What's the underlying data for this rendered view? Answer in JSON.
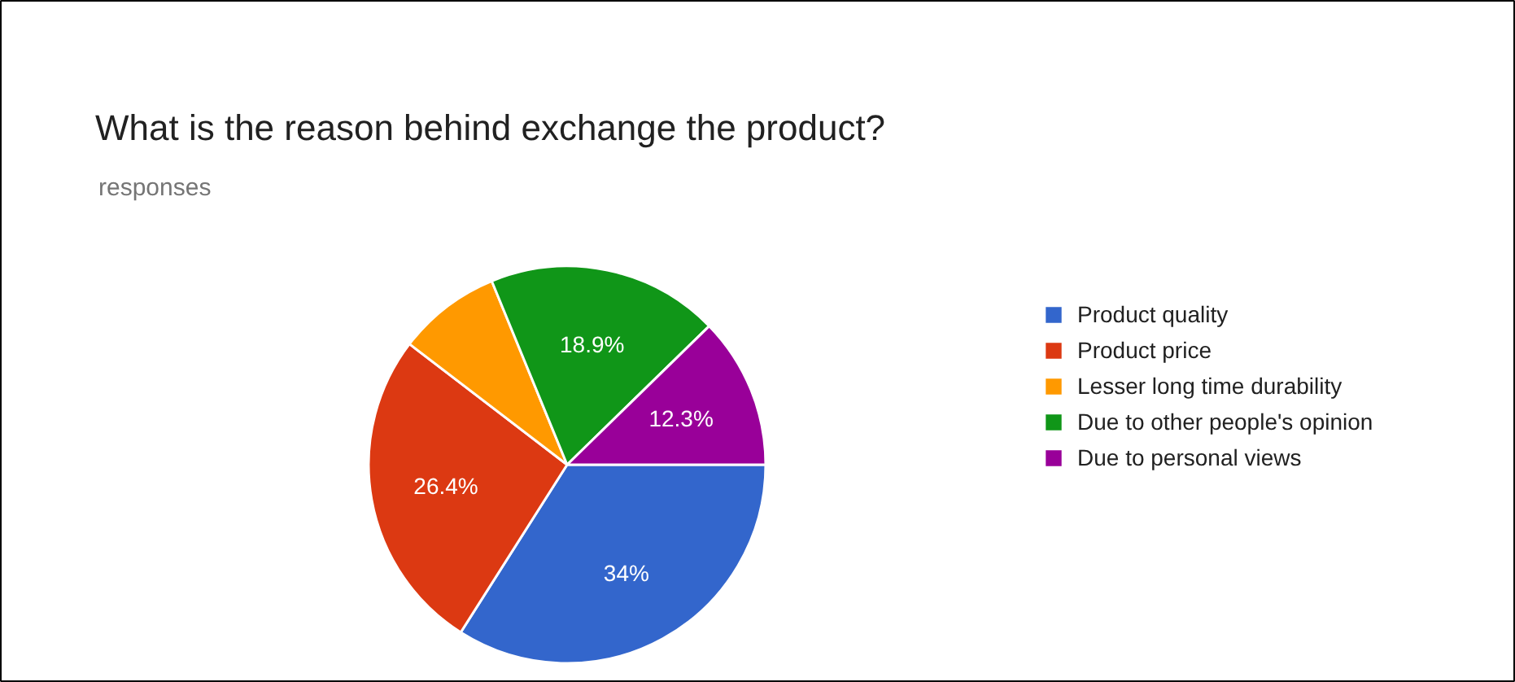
{
  "chart_data": {
    "type": "pie",
    "title": "What is the reason behind exchange the product?",
    "subtitle": "responses",
    "categories": [
      "Product quality",
      "Product price",
      "Lesser long time durability",
      "Due to other people's opinion",
      "Due to personal views"
    ],
    "values": [
      34,
      26.4,
      8.4,
      18.9,
      12.3
    ],
    "colors": [
      "#3366cc",
      "#dc3912",
      "#ff9900",
      "#109618",
      "#990099"
    ],
    "value_labels": [
      "34%",
      "26.4%",
      null,
      "18.9%",
      "12.3%"
    ],
    "legend": "right"
  }
}
